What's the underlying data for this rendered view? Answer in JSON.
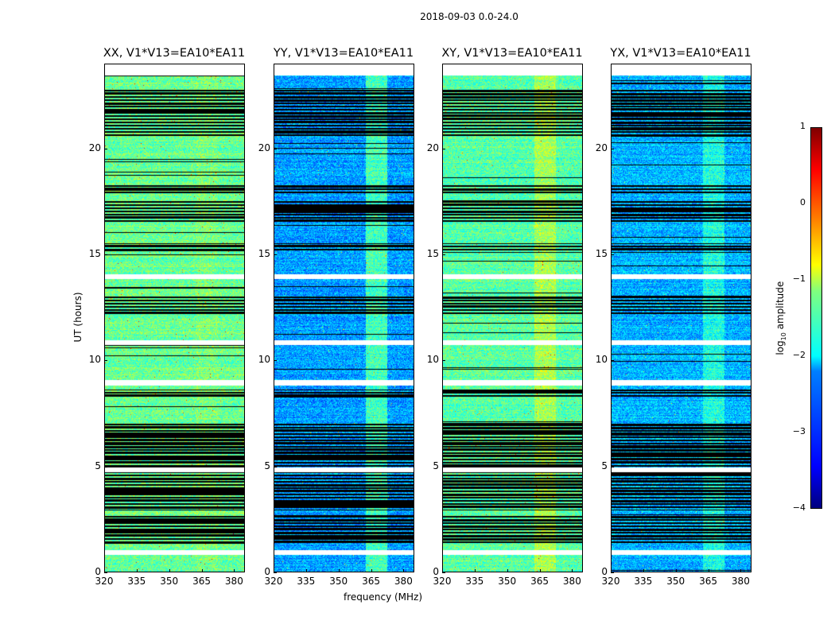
{
  "chart_data": {
    "type": "heatmap",
    "title": "2018-09-03 0.0-24.0",
    "xlabel": "frequency (MHz)",
    "ylabel": "UT (hours)",
    "xlim": [
      320,
      385
    ],
    "ylim": [
      0,
      24
    ],
    "xticks": [
      "320",
      "335",
      "350",
      "365",
      "380"
    ],
    "yticks": [
      "0",
      "5",
      "10",
      "15",
      "20"
    ],
    "panels": [
      {
        "title": "XX, V1*V13=EA10*EA11",
        "mean_log_amp": -1.6,
        "band_log_amp": -1.5
      },
      {
        "title": "YY, V1*V13=EA10*EA11",
        "mean_log_amp": -2.6,
        "band_log_amp": -1.8
      },
      {
        "title": "XY, V1*V13=EA10*EA11",
        "mean_log_amp": -1.7,
        "band_log_amp": -1.3
      },
      {
        "title": "YX, V1*V13=EA10*EA11",
        "mean_log_amp": -2.5,
        "band_log_amp": -2.0
      }
    ],
    "band_mhz": [
      362,
      372
    ],
    "data_end_hour": 23.5,
    "flagged_hours": [
      [
        1.4,
        2.8
      ],
      [
        3.0,
        7.1
      ],
      [
        8.3,
        8.7
      ],
      [
        12.2,
        13.1
      ],
      [
        15.2,
        15.6
      ],
      [
        16.6,
        17.6
      ],
      [
        17.9,
        18.3
      ],
      [
        20.6,
        22.9
      ]
    ],
    "gap_hours": [
      1.0,
      10.9,
      14.0,
      4.9,
      9.0
    ],
    "colorbar": {
      "label": "log10 amplitude",
      "label_main": "log",
      "label_sub": "10",
      "label_rest": " amplitude",
      "range": [
        -4,
        1
      ],
      "ticks": [
        "1",
        "0",
        "−1",
        "−2",
        "−3",
        "−4"
      ],
      "colormap": "jet"
    }
  }
}
